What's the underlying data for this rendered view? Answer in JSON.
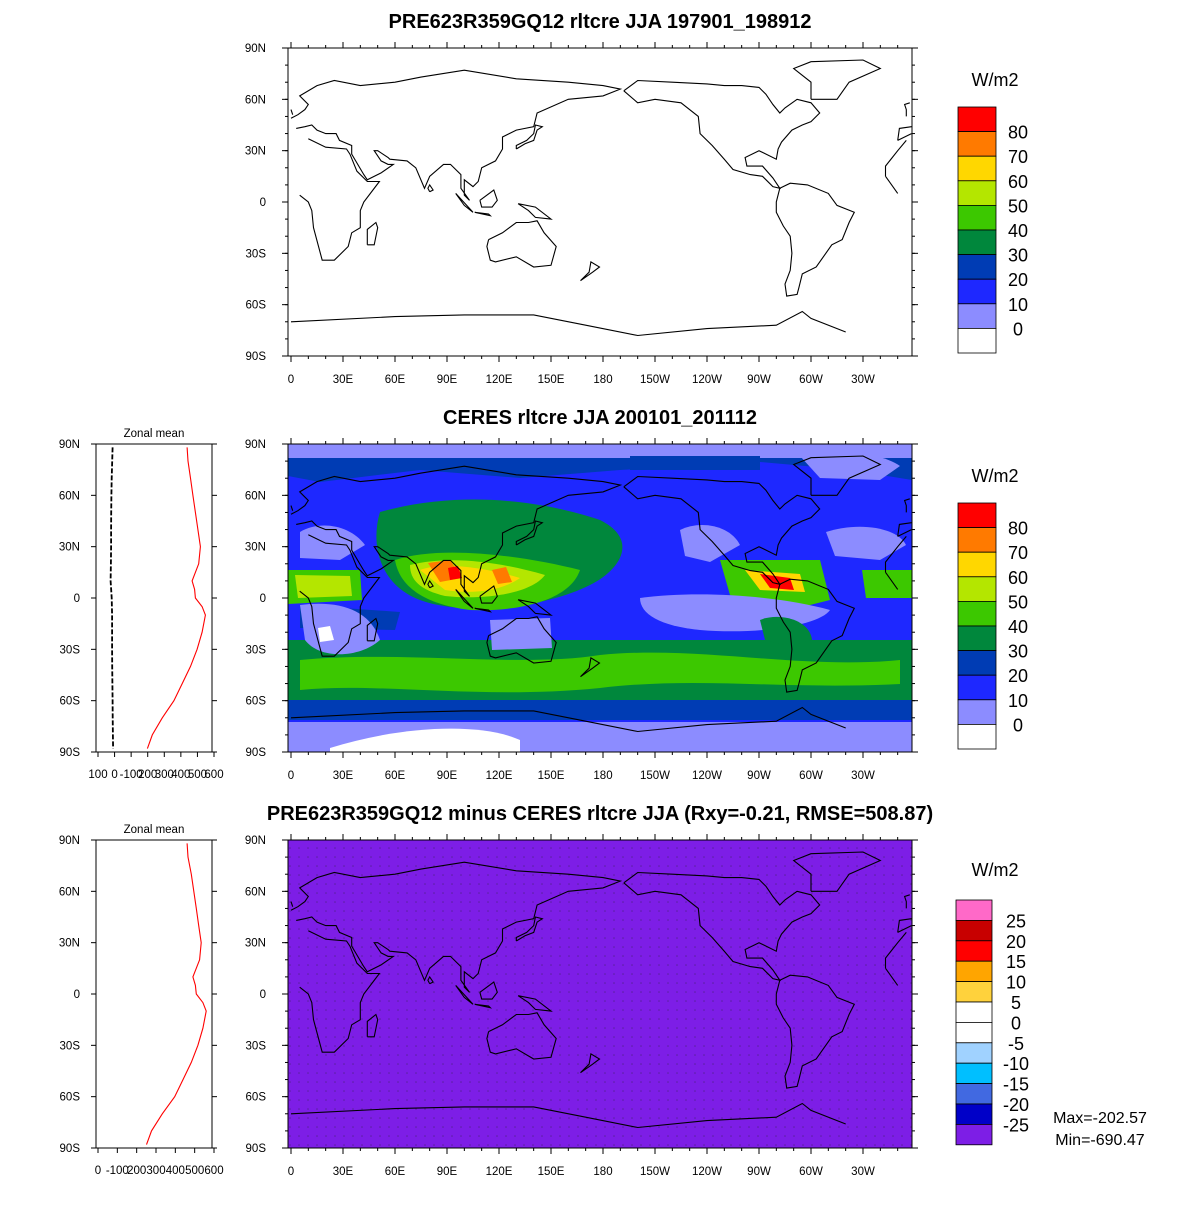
{
  "chart_data": [
    {
      "type": "heatmap",
      "title": "PRE623R359GQ12 rltcre JJA 197901_198912",
      "x_ticks": [
        "0",
        "30E",
        "60E",
        "90E",
        "120E",
        "150E",
        "180",
        "150W",
        "120W",
        "90W",
        "60W",
        "30W"
      ],
      "y_ticks": [
        "90N",
        "60N",
        "30N",
        "0",
        "30S",
        "60S",
        "90S"
      ],
      "colorbar_title": "W/m2",
      "colorbar_levels": [
        "80",
        "70",
        "60",
        "50",
        "40",
        "30",
        "20",
        "10",
        "0"
      ],
      "colorbar_colors": [
        "#ff0000",
        "#ff7a00",
        "#ffd700",
        "#b4e600",
        "#3cc800",
        "#00873c",
        "#003cb4",
        "#1e28ff",
        "#8c8cff",
        "#ffffff"
      ],
      "field": "blank (coastlines only)"
    },
    {
      "type": "heatmap",
      "title": "CERES rltcre JJA 200101_201112",
      "x_ticks": [
        "0",
        "30E",
        "60E",
        "90E",
        "120E",
        "150E",
        "180",
        "150W",
        "120W",
        "90W",
        "60W",
        "30W"
      ],
      "y_ticks": [
        "90N",
        "60N",
        "30N",
        "0",
        "30S",
        "60S",
        "90S"
      ],
      "colorbar_title": "W/m2",
      "colorbar_levels": [
        "80",
        "70",
        "60",
        "50",
        "40",
        "30",
        "20",
        "10",
        "0"
      ],
      "colorbar_colors": [
        "#ff0000",
        "#ff7a00",
        "#ffd700",
        "#b4e600",
        "#3cc800",
        "#00873c",
        "#003cb4",
        "#1e28ff",
        "#8c8cff",
        "#ffffff"
      ]
    },
    {
      "type": "line",
      "title": "Zonal mean",
      "x_ticks": [
        "100",
        "0",
        "-100",
        "200",
        "300",
        "400",
        "500",
        "600"
      ],
      "y_ticks": [
        "90N",
        "60N",
        "30N",
        "0",
        "30S",
        "60S",
        "90S"
      ],
      "xlim": [
        -100,
        600
      ],
      "series": [
        {
          "color": "#000000",
          "dash": true,
          "lat": [
            88,
            80,
            70,
            60,
            50,
            40,
            30,
            20,
            10,
            0,
            -10,
            -20,
            -30,
            -40,
            -50,
            -60,
            -70,
            -80,
            -88
          ],
          "values": [
            0,
            -2,
            -5,
            -7,
            -8,
            -9,
            -9,
            -10,
            -12,
            -5,
            -3,
            -3,
            -3,
            -2,
            -1,
            0,
            1,
            2,
            3
          ]
        },
        {
          "color": "#ff0000",
          "lat": [
            88,
            80,
            70,
            60,
            50,
            40,
            30,
            20,
            10,
            5,
            0,
            -5,
            -10,
            -20,
            -30,
            -40,
            -50,
            -60,
            -70,
            -80,
            -88
          ],
          "values": [
            450,
            455,
            470,
            485,
            500,
            515,
            530,
            520,
            480,
            495,
            500,
            540,
            560,
            540,
            510,
            470,
            420,
            370,
            300,
            240,
            210
          ]
        }
      ]
    },
    {
      "type": "heatmap",
      "title": "PRE623R359GQ12 minus CERES rltcre JJA (Rxy=-0.21, RMSE=508.87)",
      "x_ticks": [
        "0",
        "30E",
        "60E",
        "90E",
        "120E",
        "150E",
        "180",
        "150W",
        "120W",
        "90W",
        "60W",
        "30W"
      ],
      "y_ticks": [
        "90N",
        "60N",
        "30N",
        "0",
        "30S",
        "60S",
        "90S"
      ],
      "colorbar_title": "W/m2",
      "colorbar_levels": [
        "25",
        "20",
        "15",
        "10",
        "5",
        "0",
        "-5",
        "-10",
        "-15",
        "-20",
        "-25"
      ],
      "colorbar_colors": [
        "#ff69c8",
        "#c80000",
        "#ff0000",
        "#ffa500",
        "#ffd23c",
        "#ffffff",
        "#ffffff",
        "#a0d2ff",
        "#00bfff",
        "#4169e1",
        "#0000c8",
        "#7d1ee6"
      ],
      "max": "Max=-202.57",
      "min": "Min=-690.47"
    },
    {
      "type": "line",
      "title": "Zonal mean",
      "x_ticks": [
        "0",
        "-100",
        "200",
        "300",
        "400",
        "500",
        "600"
      ],
      "y_ticks": [
        "90N",
        "60N",
        "30N",
        "0",
        "30S",
        "60S",
        "90S"
      ],
      "xlim": [
        -100,
        600
      ],
      "series": [
        {
          "color": "#ff0000",
          "lat": [
            88,
            80,
            70,
            60,
            50,
            40,
            30,
            20,
            10,
            5,
            0,
            -5,
            -10,
            -20,
            -30,
            -40,
            -50,
            -60,
            -70,
            -80,
            -88
          ],
          "values": [
            450,
            455,
            475,
            490,
            505,
            520,
            535,
            525,
            485,
            500,
            505,
            545,
            565,
            545,
            515,
            475,
            425,
            375,
            300,
            235,
            205
          ]
        }
      ]
    }
  ]
}
